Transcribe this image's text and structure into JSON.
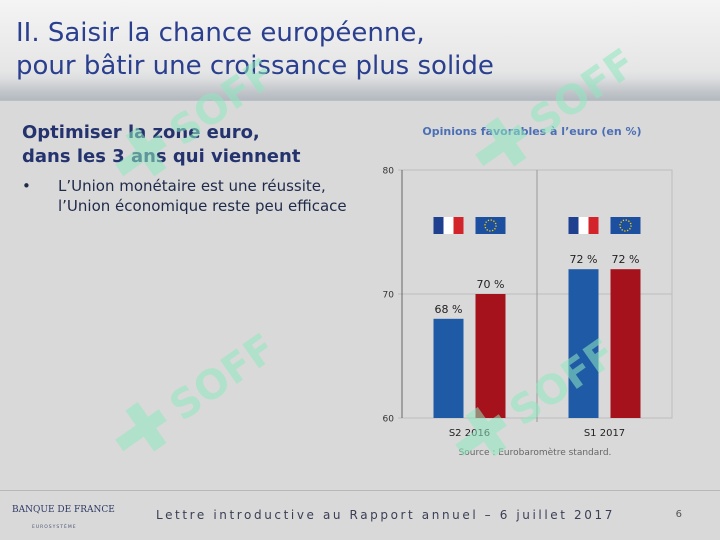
{
  "slide": {
    "title_lines": [
      "II. Saisir la chance européenne,",
      "pour bâtir une croissance plus solide"
    ],
    "subtitle_lines": [
      "Optimiser la zone euro,",
      "dans les 3 ans qui viennent"
    ],
    "bullet": {
      "marker": "•",
      "lines": [
        "L’Union monétaire est une réussite,",
        "l’Union économique reste peu efficace"
      ]
    },
    "watermark_text": "SOFF"
  },
  "chart_data": {
    "type": "bar",
    "title": "Opinions favorables à l’euro (en %)",
    "categories": [
      "S2 2016",
      "S1 2017"
    ],
    "series": [
      {
        "flag": "france-flag",
        "color": "#1f5aa6",
        "values": [
          68,
          72
        ]
      },
      {
        "flag": "eu-flag",
        "color": "#a5121b",
        "values": [
          70,
          72
        ]
      }
    ],
    "data_labels": [
      [
        "68 %",
        "70 %"
      ],
      [
        "72 %",
        "72 %"
      ]
    ],
    "ylim": [
      60,
      80
    ],
    "yticks": [
      "60",
      "70",
      "80"
    ],
    "grid": true,
    "source": "Source : Eurobaromètre standard."
  },
  "footer": {
    "logo_main": "BANQUE DE FRANCE",
    "logo_sub": "EUROSYSTÈME",
    "text": "Lettre introductive au Rapport annuel – 6 juillet 2017",
    "page_number": "6"
  },
  "colors": {
    "title": "#2b3f8f",
    "france_bar": "#1f5aa6",
    "eu_bar": "#a5121b",
    "watermark": "#8fe8c0"
  }
}
